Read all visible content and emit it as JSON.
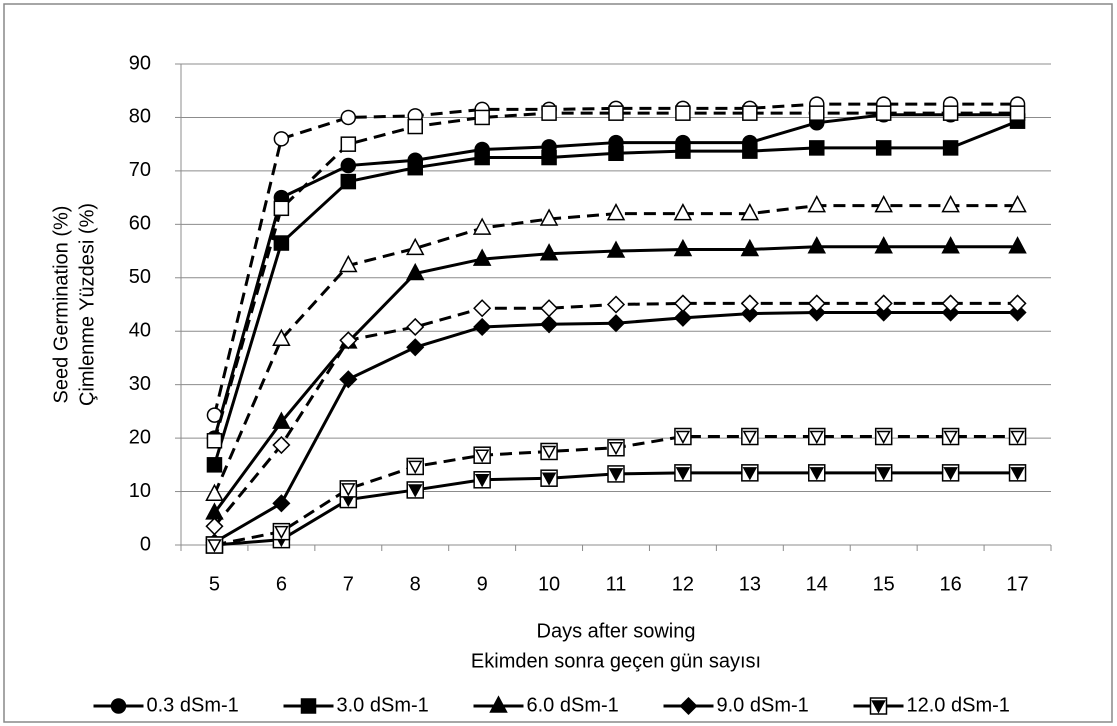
{
  "chart_data": {
    "type": "line",
    "y_label_lines": [
      "Seed Germination (%)",
      "Çimlenme Yüzdesi (%)"
    ],
    "x_label_lines": [
      "Days after sowing",
      "Ekimden sonra geçen gün sayısı"
    ],
    "categories": [
      5,
      6,
      7,
      8,
      9,
      10,
      11,
      12,
      13,
      14,
      15,
      16,
      17
    ],
    "ylim": [
      0,
      90
    ],
    "yticks": [
      0,
      10,
      20,
      30,
      40,
      50,
      60,
      70,
      80,
      90
    ],
    "grid": true,
    "legend": "bottom",
    "series": [
      {
        "name": "0.3 dSm-1",
        "color": "#000000",
        "dashed": false,
        "marker": "circle",
        "filled": true,
        "values": [
          20,
          65,
          71,
          72,
          74,
          74.5,
          75.3,
          75.3,
          75.3,
          79,
          80.5,
          80.5,
          80.5
        ]
      },
      {
        "name": "3.0 dSm-1",
        "color": "#000000",
        "dashed": false,
        "marker": "square",
        "filled": true,
        "values": [
          15,
          56.5,
          68,
          70.6,
          72.5,
          72.5,
          73.3,
          73.7,
          73.7,
          74.3,
          74.3,
          74.3,
          79.3
        ]
      },
      {
        "name": "6.0 dSm-1",
        "color": "#000000",
        "dashed": false,
        "marker": "triangle",
        "filled": true,
        "values": [
          6,
          23,
          38,
          50.8,
          53.5,
          54.5,
          55,
          55.3,
          55.3,
          55.8,
          55.8,
          55.8,
          55.8
        ]
      },
      {
        "name": "9.0 dSm-1",
        "color": "#000000",
        "dashed": false,
        "marker": "diamond",
        "filled": true,
        "values": [
          0.5,
          7.8,
          31,
          37,
          40.8,
          41.3,
          41.5,
          42.5,
          43.3,
          43.5,
          43.5,
          43.5,
          43.5
        ]
      },
      {
        "name": "12.0 dSm-1",
        "color": "#000000",
        "dashed": false,
        "marker": "square-triangle",
        "filled": true,
        "values": [
          0,
          1,
          8.5,
          10.3,
          12.2,
          12.5,
          13.3,
          13.5,
          13.5,
          13.5,
          13.5,
          13.5,
          13.5
        ]
      },
      {
        "color": "#000000",
        "dashed": true,
        "marker": "circle",
        "filled": false,
        "values": [
          24.3,
          76,
          80,
          80.3,
          81.5,
          81.5,
          81.7,
          81.7,
          81.7,
          82.5,
          82.5,
          82.5,
          82.5
        ]
      },
      {
        "color": "#000000",
        "dashed": true,
        "marker": "square",
        "filled": false,
        "values": [
          19.5,
          63,
          75,
          78.3,
          80,
          80.8,
          80.8,
          80.8,
          80.8,
          80.8,
          80.8,
          80.8,
          80.8
        ]
      },
      {
        "color": "#000000",
        "dashed": true,
        "marker": "triangle",
        "filled": false,
        "values": [
          9.5,
          38.5,
          52.3,
          55.5,
          59.3,
          61,
          62,
          62,
          62,
          63.5,
          63.5,
          63.5,
          63.5
        ]
      },
      {
        "color": "#000000",
        "dashed": true,
        "marker": "diamond",
        "filled": false,
        "values": [
          3.5,
          18.7,
          38.3,
          40.8,
          44.3,
          44.3,
          45,
          45.2,
          45.2,
          45.2,
          45.2,
          45.2,
          45.2
        ]
      },
      {
        "color": "#000000",
        "dashed": true,
        "marker": "square-triangle",
        "filled": false,
        "values": [
          0,
          2.5,
          10.5,
          14.7,
          16.8,
          17.5,
          18.2,
          20.3,
          20.3,
          20.3,
          20.3,
          20.3,
          20.3
        ]
      }
    ]
  }
}
